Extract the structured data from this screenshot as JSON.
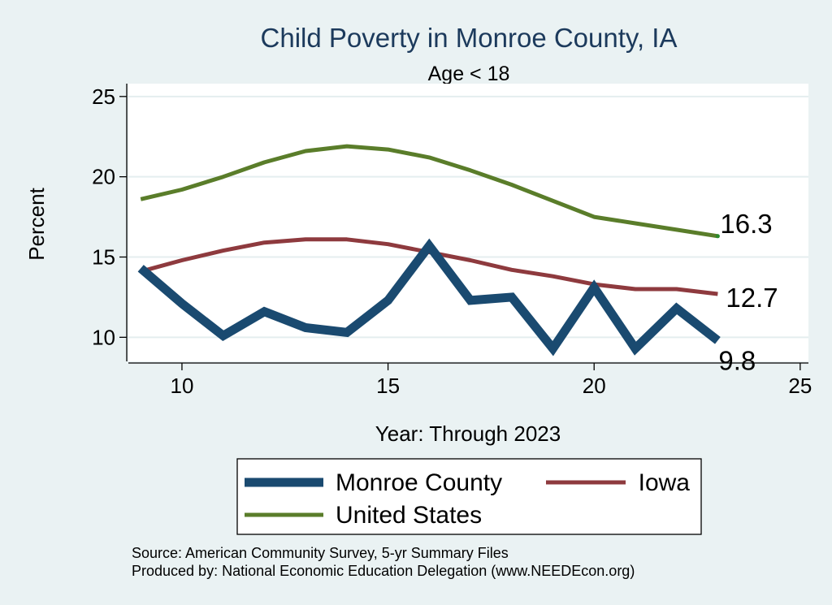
{
  "chart_data": {
    "type": "line",
    "title": "Child Poverty in Monroe County, IA",
    "subtitle": "Age < 18",
    "xlabel": "Year: Through 2023",
    "ylabel": "Percent",
    "xlim": [
      8.7,
      25.2
    ],
    "ylim": [
      8.5,
      25.8
    ],
    "xticks": [
      10,
      15,
      20,
      25
    ],
    "yticks": [
      10,
      15,
      20,
      25
    ],
    "grid": true,
    "legend_position": "bottom",
    "colors": {
      "background": "#eaf2f3",
      "plot": "#ffffff",
      "grid": "#e4eeef",
      "title": "#1c3a5c"
    },
    "x": [
      9,
      10,
      11,
      12,
      13,
      14,
      15,
      16,
      17,
      18,
      19,
      20,
      21,
      22,
      23
    ],
    "series": [
      {
        "name": "Monroe County",
        "color": "#1a4a70",
        "values": [
          14.3,
          12.1,
          10.1,
          11.6,
          10.6,
          10.3,
          12.3,
          15.7,
          12.3,
          12.5,
          9.3,
          13.1,
          9.3,
          11.8,
          9.8
        ],
        "end_label": "9.8"
      },
      {
        "name": "Iowa",
        "color": "#8e3a3e",
        "values": [
          14.1,
          14.8,
          15.4,
          15.9,
          16.1,
          16.1,
          15.8,
          15.3,
          14.8,
          14.2,
          13.8,
          13.3,
          13.0,
          13.0,
          12.7
        ],
        "end_label": "12.7"
      },
      {
        "name": "United States",
        "color": "#5a7d2a",
        "values": [
          18.6,
          19.2,
          20.0,
          20.9,
          21.6,
          21.9,
          21.7,
          21.2,
          20.4,
          19.5,
          18.5,
          17.5,
          17.1,
          16.7,
          16.3
        ],
        "end_label": "16.3"
      }
    ],
    "source_lines": [
      "Source: American Community Survey, 5-yr Summary Files",
      "Produced by: National Economic Education Delegation (www.NEEDEcon.org)"
    ]
  }
}
